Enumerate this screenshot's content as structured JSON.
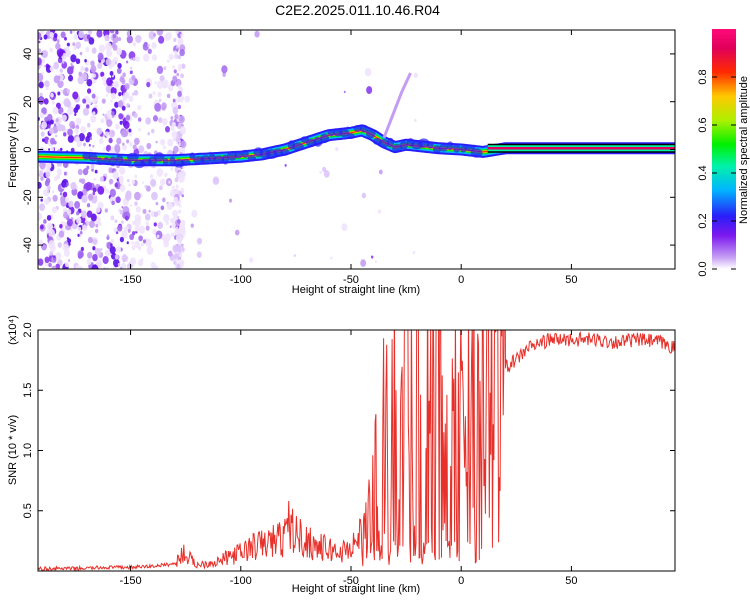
{
  "title": "C2E2.2025.011.10.46.R04",
  "chart_data": [
    {
      "type": "heatmap",
      "xlabel": "Height of straight line (km)",
      "ylabel": "Frequency (Hz)",
      "xlim": [
        -192,
        97
      ],
      "ylim": [
        -50,
        50
      ],
      "x_ticks": [
        -150,
        -100,
        -50,
        0,
        50
      ],
      "y_ticks": [
        -40,
        -20,
        0,
        20,
        40
      ],
      "colorbar": {
        "label": "Normalized spectral amplitude",
        "range": [
          0,
          1
        ],
        "ticks": [
          0.0,
          0.2,
          0.4,
          0.6,
          0.8
        ],
        "tick_labels": [
          "0.0",
          "0.2",
          "0.4",
          "0.6",
          "0.8"
        ]
      },
      "ridge": {
        "x": [
          -192,
          -170,
          -150,
          -140,
          -130,
          -120,
          -110,
          -100,
          -90,
          -80,
          -70,
          -60,
          -50,
          -45,
          -40,
          -35,
          -30,
          -25,
          -20,
          -10,
          0,
          10,
          20,
          50,
          97
        ],
        "y": [
          -3,
          -3.5,
          -4.5,
          -4.5,
          -4.5,
          -4,
          -3.5,
          -3,
          -2,
          0,
          3,
          6,
          7,
          8,
          6,
          3,
          1,
          2,
          1.5,
          0.5,
          0,
          -1,
          0.5,
          0.5,
          0.5
        ]
      }
    },
    {
      "type": "line",
      "xlabel": "Height of straight line (km)",
      "ylabel": "SNR (10 * v/v)",
      "y_multiplier": "(x10⁴)",
      "xlim": [
        -192,
        97
      ],
      "ylim": [
        0,
        2.0
      ],
      "x_ticks": [
        -150,
        -100,
        -50,
        0,
        50
      ],
      "y_ticks": [
        0.5,
        1.0,
        1.5,
        2.0
      ],
      "y_tick_labels": [
        "0.5",
        "1.0",
        "1.5",
        "2.0"
      ],
      "series": [
        {
          "color": "#e8302a",
          "x": [
            -192,
            -175,
            -160,
            -150,
            -140,
            -130,
            -126,
            -120,
            -110,
            -105,
            -100,
            -95,
            -90,
            -85,
            -80,
            -78,
            -75,
            -70,
            -65,
            -60,
            -55,
            -50,
            -45,
            -40,
            -37,
            -35,
            -32,
            -30,
            -28,
            -25,
            -22,
            -20,
            -18,
            -15,
            -12,
            -10,
            -8,
            -5,
            -3,
            0,
            5,
            10,
            15,
            20,
            25,
            30,
            40,
            50,
            60,
            70,
            80,
            90,
            97
          ],
          "y": [
            0.02,
            0.02,
            0.03,
            0.03,
            0.04,
            0.06,
            0.15,
            0.05,
            0.08,
            0.12,
            0.15,
            0.2,
            0.22,
            0.25,
            0.28,
            0.4,
            0.3,
            0.25,
            0.2,
            0.18,
            0.15,
            0.2,
            0.3,
            0.55,
            0.9,
            1.05,
            1.2,
            1.3,
            1.5,
            1.6,
            1.55,
            1.65,
            1.7,
            1.7,
            1.65,
            1.7,
            1.5,
            1.4,
            1.2,
            1.3,
            1.35,
            1.4,
            1.55,
            1.7,
            1.75,
            1.85,
            1.92,
            1.92,
            1.92,
            1.9,
            1.92,
            1.9,
            1.85
          ]
        }
      ]
    }
  ]
}
